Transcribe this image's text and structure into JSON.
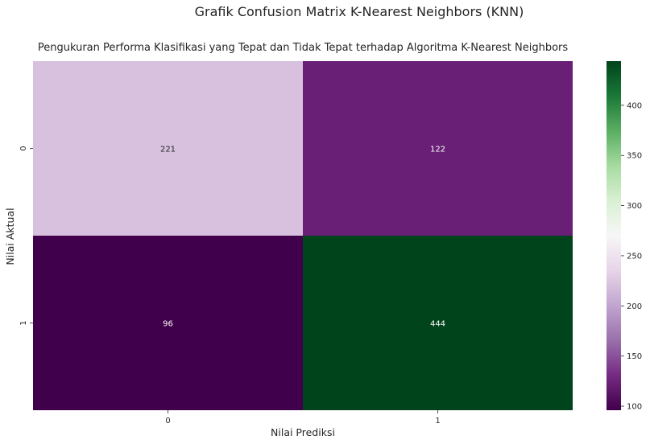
{
  "chart_data": {
    "type": "heatmap",
    "suptitle": "Grafik Confusion Matrix K-Nearest Neighbors (KNN)",
    "title": "Pengukuran Performa Klasifikasi yang Tepat dan Tidak Tepat terhadap Algoritma K-Nearest Neighbors",
    "xlabel": "Nilai Prediksi",
    "ylabel": "Nilai Aktual",
    "x_categories": [
      "0",
      "1"
    ],
    "y_categories": [
      "0",
      "1"
    ],
    "matrix": [
      [
        221,
        122
      ],
      [
        96,
        444
      ]
    ],
    "colormap": "PRGn",
    "colorbar": {
      "ticks": [
        100,
        150,
        200,
        250,
        300,
        350,
        400
      ],
      "range": [
        96,
        444
      ]
    }
  }
}
